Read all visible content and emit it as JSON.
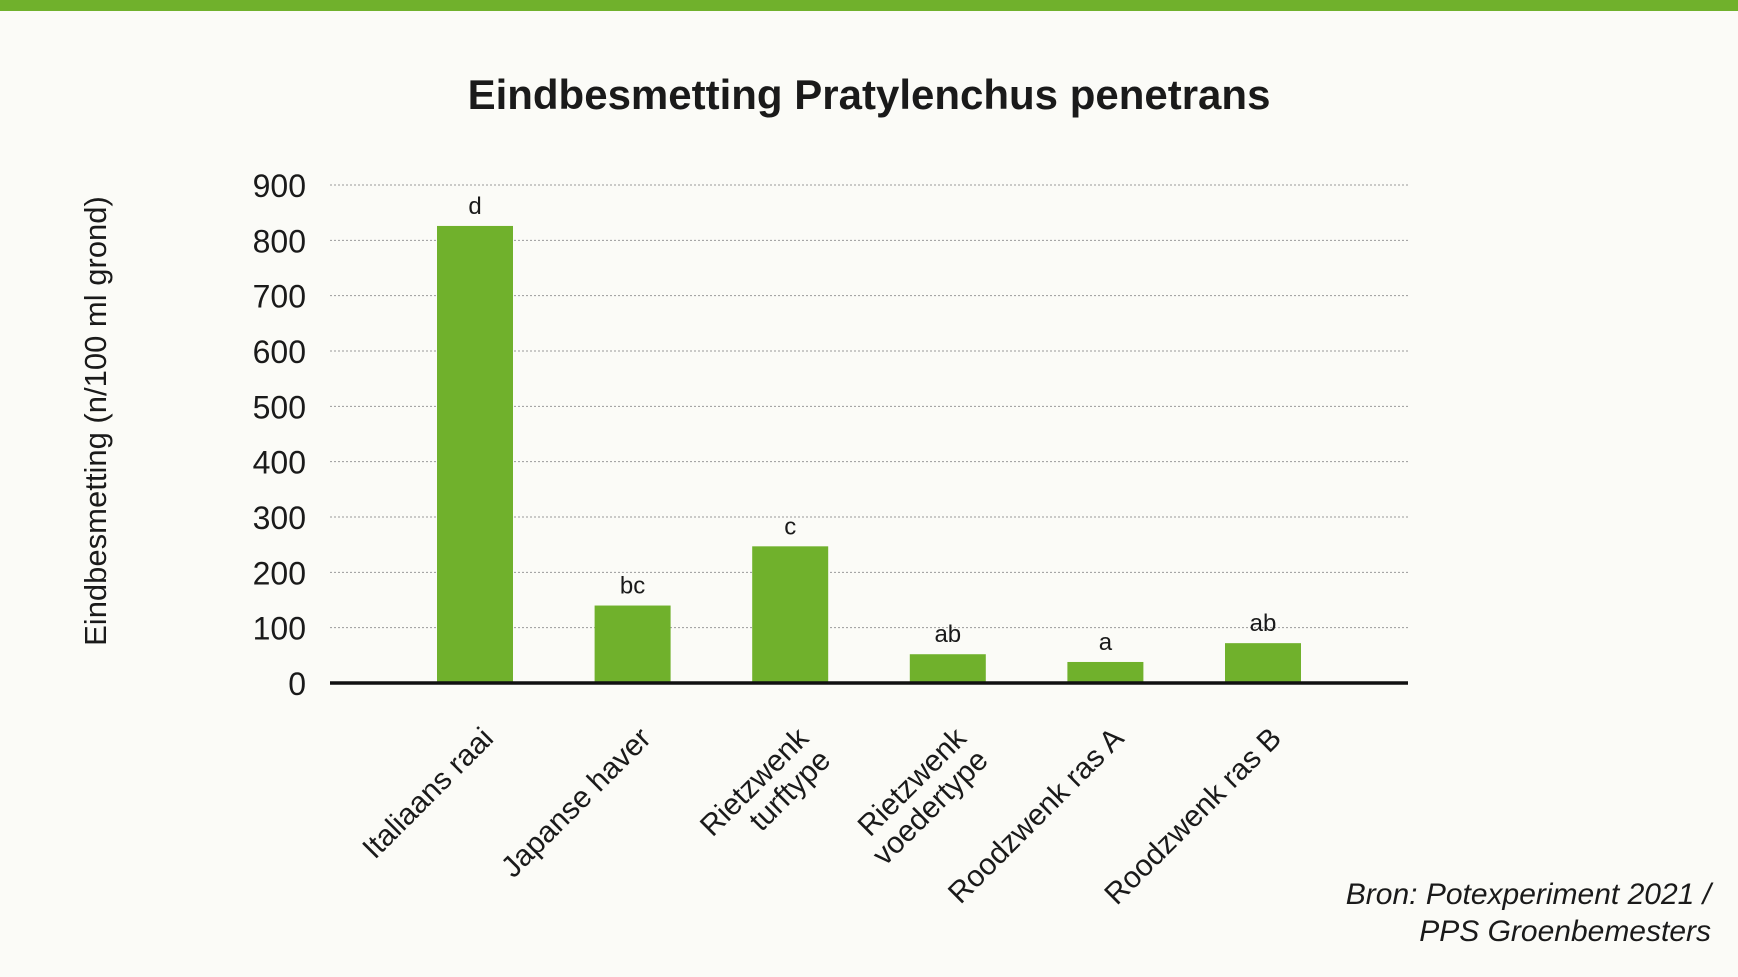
{
  "chart_data": {
    "type": "bar",
    "title": "Eindbesmetting Pratylenchus penetrans",
    "ylabel": "Eindbesmetting (n/100 ml grond)",
    "xlabel": "",
    "categories": [
      [
        "Italiaans raai"
      ],
      [
        "Japanse haver"
      ],
      [
        "Rietzwenk",
        "turftype"
      ],
      [
        "Rietzwenk",
        "voedertype"
      ],
      [
        "Roodzwenk ras A"
      ],
      [
        "Roodzwenk ras B"
      ]
    ],
    "values": [
      826,
      140,
      247,
      52,
      38,
      72
    ],
    "significance_letters": [
      "d",
      "bc",
      "c",
      "ab",
      "a",
      "ab"
    ],
    "ylim": [
      0,
      900
    ],
    "yticks": [
      0,
      100,
      200,
      300,
      400,
      500,
      600,
      700,
      800,
      900
    ],
    "grid": true,
    "bar_color": "#70b12c"
  },
  "source": {
    "line1": "Bron: Potexperiment 2021 /",
    "line2": "PPS Groenbemesters"
  },
  "colors": {
    "accent": "#70b12c",
    "background": "#fbfbf7",
    "text": "#1a1a1a"
  }
}
